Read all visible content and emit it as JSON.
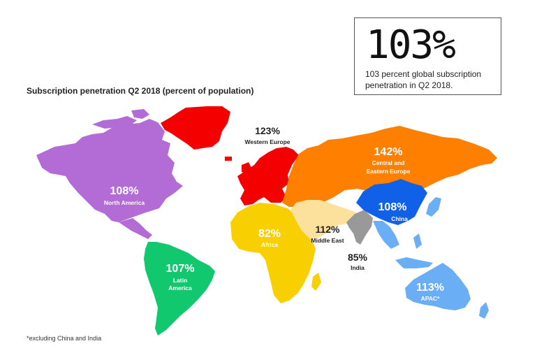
{
  "headline": {
    "value": "103%",
    "caption": "103 percent global subscription penetration in Q2 2018."
  },
  "map_title": "Subscription penetration Q2 2018 (percent of population)",
  "footnote": "*excluding China and India",
  "colors": {
    "north_america": "#b36bd6",
    "latin_america": "#12c86e",
    "western_europe": "#f40000",
    "central_eastern_europe": "#ff8000",
    "africa": "#f8cf00",
    "middle_east": "#fbe19b",
    "india": "#999999",
    "china": "#1060e8",
    "apac": "#6aaef5"
  },
  "regions": {
    "north_america": {
      "value": "108%",
      "name": "North America"
    },
    "latin_america": {
      "value": "107%",
      "name_line1": "Latin",
      "name_line2": "America"
    },
    "western_europe": {
      "value": "123%",
      "name": "Western Europe"
    },
    "central_eastern_europe": {
      "value": "142%",
      "name_line1": "Central and",
      "name_line2": "Eastern Europe"
    },
    "africa": {
      "value": "82%",
      "name": "Africa"
    },
    "middle_east": {
      "value": "112%",
      "name": "Middle East"
    },
    "india": {
      "value": "85%",
      "name": "India"
    },
    "china": {
      "value": "108%",
      "name": "China"
    },
    "apac": {
      "value": "113%",
      "name": "APAC*"
    }
  }
}
